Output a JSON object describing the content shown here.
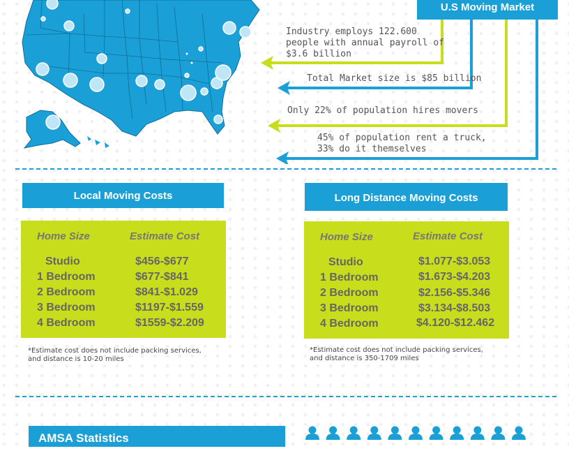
{
  "header": {
    "title": "U.S Moving Market"
  },
  "stats": [
    {
      "text": "Industry employs 122.600\npeople with annual payroll of\n$3.6 billion"
    },
    {
      "text": "Total Market size is $85 billion"
    },
    {
      "text": "Only 22% of population hires movers"
    },
    {
      "text": "45% of population rent a truck,\n33% do it themselves"
    }
  ],
  "local": {
    "title": "Local Moving Costs",
    "col_home": "Home Size",
    "col_cost": "Estimate  Cost",
    "rows": [
      {
        "home": "Studio",
        "cost": "$456-$677"
      },
      {
        "home": "1 Bedroom",
        "cost": "$677-$841"
      },
      {
        "home": "2 Bedroom",
        "cost": "$841-$1.029"
      },
      {
        "home": "3 Bedroom",
        "cost": "$1197-$1.559"
      },
      {
        "home": "4 Bedroom",
        "cost": "$1559-$2.209"
      }
    ],
    "note_line1": "*Estimate cost does not include packing services,",
    "note_line2": "and distance is 10-20 miles"
  },
  "long": {
    "title": "Long Distance Moving Costs",
    "col_home": "Home Size",
    "col_cost": "Estimate  Cost",
    "rows": [
      {
        "home": "Studio",
        "cost": "$1.077-$3.053"
      },
      {
        "home": "1 Bedroom",
        "cost": "$1.673-$4.203"
      },
      {
        "home": "2 Bedroom",
        "cost": "$2.156-$5.346"
      },
      {
        "home": "3 Bedroom",
        "cost": "$3.134-$8.503"
      },
      {
        "home": "4 Bedroom",
        "cost": "$4.120-$12.462"
      }
    ],
    "note_line1": "*Estimate cost does not include packing services,",
    "note_line2": "and distance is 350-1709 miles"
  },
  "amsa": {
    "title": "AMSA Statistics"
  },
  "colors": {
    "blue": "#1aa0d6",
    "lime": "#c8dd1b",
    "text": "#555555"
  },
  "icons": {
    "map": "usa-map-icon",
    "people": "person-icon"
  }
}
